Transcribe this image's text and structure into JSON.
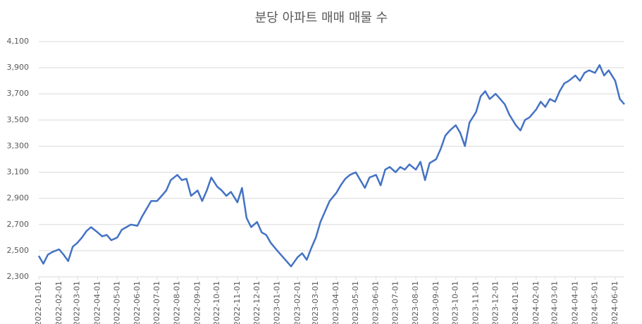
{
  "chart_data": {
    "type": "line",
    "title": "분당 아파트 매매 매물 수",
    "x": [
      "2022-01-01",
      "2022-01-08",
      "2022-01-15",
      "2022-01-22",
      "2022-02-01",
      "2022-02-08",
      "2022-02-15",
      "2022-02-22",
      "2022-03-01",
      "2022-03-08",
      "2022-03-15",
      "2022-03-22",
      "2022-04-01",
      "2022-04-08",
      "2022-04-15",
      "2022-04-22",
      "2022-05-01",
      "2022-05-08",
      "2022-05-15",
      "2022-05-22",
      "2022-06-01",
      "2022-06-08",
      "2022-06-15",
      "2022-06-22",
      "2022-07-01",
      "2022-07-08",
      "2022-07-15",
      "2022-07-22",
      "2022-08-01",
      "2022-08-08",
      "2022-08-15",
      "2022-08-22",
      "2022-09-01",
      "2022-09-08",
      "2022-09-15",
      "2022-09-22",
      "2022-10-01",
      "2022-10-08",
      "2022-10-15",
      "2022-10-22",
      "2022-11-01",
      "2022-11-08",
      "2022-11-15",
      "2022-11-22",
      "2022-12-01",
      "2022-12-08",
      "2022-12-15",
      "2022-12-22",
      "2023-01-01",
      "2023-01-08",
      "2023-01-15",
      "2023-01-22",
      "2023-02-01",
      "2023-02-08",
      "2023-02-15",
      "2023-02-22",
      "2023-03-01",
      "2023-03-08",
      "2023-03-15",
      "2023-03-22",
      "2023-04-01",
      "2023-04-08",
      "2023-04-15",
      "2023-04-22",
      "2023-05-01",
      "2023-05-08",
      "2023-05-15",
      "2023-05-22",
      "2023-06-01",
      "2023-06-08",
      "2023-06-15",
      "2023-06-22",
      "2023-07-01",
      "2023-07-08",
      "2023-07-15",
      "2023-07-22",
      "2023-08-01",
      "2023-08-08",
      "2023-08-15",
      "2023-08-22",
      "2023-09-01",
      "2023-09-08",
      "2023-09-15",
      "2023-09-22",
      "2023-10-01",
      "2023-10-08",
      "2023-10-15",
      "2023-10-22",
      "2023-11-01",
      "2023-11-08",
      "2023-11-15",
      "2023-11-22",
      "2023-12-01",
      "2023-12-08",
      "2023-12-15",
      "2023-12-22",
      "2024-01-01",
      "2024-01-08",
      "2024-01-15",
      "2024-01-22",
      "2024-02-01",
      "2024-02-08",
      "2024-02-15",
      "2024-02-22",
      "2024-03-01",
      "2024-03-08",
      "2024-03-15",
      "2024-03-22",
      "2024-04-01",
      "2024-04-08",
      "2024-04-15",
      "2024-04-22",
      "2024-05-01",
      "2024-05-08",
      "2024-05-15",
      "2024-05-22",
      "2024-06-01",
      "2024-06-08",
      "2024-06-15"
    ],
    "series": [
      {
        "color": "#4472c4",
        "values": [
          2460,
          2400,
          2470,
          2490,
          2510,
          2470,
          2420,
          2530,
          2560,
          2600,
          2650,
          2680,
          2640,
          2610,
          2620,
          2580,
          2600,
          2660,
          2680,
          2700,
          2690,
          2760,
          2820,
          2880,
          2880,
          2920,
          2960,
          3040,
          3080,
          3040,
          3050,
          2920,
          2960,
          2880,
          2960,
          3060,
          2990,
          2960,
          2920,
          2950,
          2870,
          2980,
          2750,
          2680,
          2720,
          2640,
          2620,
          2560,
          2500,
          2460,
          2420,
          2380,
          2450,
          2480,
          2430,
          2520,
          2600,
          2720,
          2800,
          2880,
          2940,
          3000,
          3050,
          3080,
          3100,
          3040,
          2980,
          3060,
          3080,
          3000,
          3120,
          3140,
          3100,
          3140,
          3120,
          3160,
          3120,
          3180,
          3040,
          3170,
          3200,
          3280,
          3380,
          3420,
          3460,
          3400,
          3300,
          3480,
          3560,
          3680,
          3720,
          3660,
          3700,
          3660,
          3620,
          3540,
          3460,
          3420,
          3500,
          3520,
          3580,
          3640,
          3600,
          3660,
          3640,
          3720,
          3780,
          3800,
          3840,
          3800,
          3860,
          3880,
          3860,
          3920,
          3840,
          3880,
          3800,
          3660,
          3620
        ]
      }
    ],
    "xlim": [
      "2022-01-01",
      "2024-06-15"
    ],
    "xticks": [
      "2022-01-01",
      "2022-02-01",
      "2022-03-01",
      "2022-04-01",
      "2022-05-01",
      "2022-06-01",
      "2022-07-01",
      "2022-08-01",
      "2022-09-01",
      "2022-10-01",
      "2022-11-01",
      "2022-12-01",
      "2023-01-01",
      "2023-02-01",
      "2023-03-01",
      "2023-04-01",
      "2023-05-01",
      "2023-06-01",
      "2023-07-01",
      "2023-08-01",
      "2023-09-01",
      "2023-10-01",
      "2023-11-01",
      "2023-12-01",
      "2024-01-01",
      "2024-02-01",
      "2024-03-01",
      "2024-04-01",
      "2024-05-01",
      "2024-06-01"
    ],
    "ylim": [
      2300,
      4100
    ],
    "yticks": [
      {
        "value": 2300,
        "label": "2,300"
      },
      {
        "value": 2500,
        "label": "2,500"
      },
      {
        "value": 2700,
        "label": "2,700"
      },
      {
        "value": 2900,
        "label": "2,900"
      },
      {
        "value": 3100,
        "label": "3,100"
      },
      {
        "value": 3300,
        "label": "3,300"
      },
      {
        "value": 3500,
        "label": "3,500"
      },
      {
        "value": 3700,
        "label": "3,700"
      },
      {
        "value": 3900,
        "label": "3,900"
      },
      {
        "value": 4100,
        "label": "4,100"
      }
    ],
    "grid": true
  }
}
